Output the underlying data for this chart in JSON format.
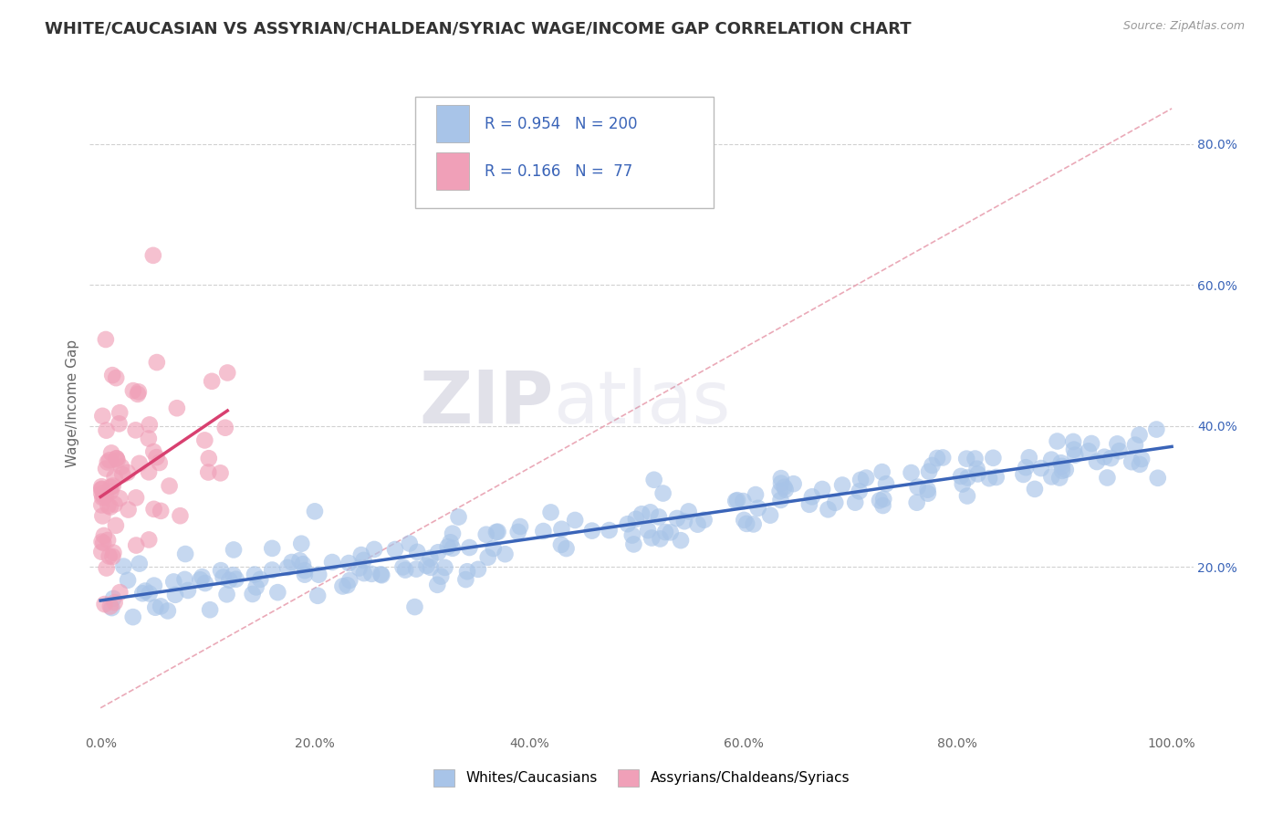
{
  "title": "WHITE/CAUCASIAN VS ASSYRIAN/CHALDEAN/SYRIAC WAGE/INCOME GAP CORRELATION CHART",
  "source_text": "Source: ZipAtlas.com",
  "ylabel": "Wage/Income Gap",
  "blue_R": 0.954,
  "blue_N": 200,
  "pink_R": 0.166,
  "pink_N": 77,
  "blue_color": "#A8C4E8",
  "blue_line_color": "#3A64B8",
  "pink_color": "#F0A0B8",
  "pink_line_color": "#D84070",
  "dashed_line_color": "#E8A0B0",
  "background_color": "#FFFFFF",
  "grid_color": "#CCCCCC",
  "legend_label_blue": "Whites/Caucasians",
  "legend_label_pink": "Assyrians/Chaldeans/Syriacs",
  "watermark_zip": "ZIP",
  "watermark_atlas": "atlas",
  "xlim": [
    0.0,
    1.0
  ],
  "ylim": [
    0.0,
    0.9
  ],
  "yticks": [
    0.2,
    0.4,
    0.6,
    0.8
  ],
  "yticklabels": [
    "20.0%",
    "40.0%",
    "60.0%",
    "80.0%"
  ],
  "xticks": [
    0.0,
    0.2,
    0.4,
    0.6,
    0.8,
    1.0
  ],
  "xticklabels": [
    "0.0%",
    "20.0%",
    "40.0%",
    "60.0%",
    "80.0%",
    "100.0%"
  ],
  "title_fontsize": 13,
  "axis_label_fontsize": 11,
  "tick_fontsize": 10,
  "legend_fontsize": 11,
  "right_ytick_color": "#3A64B8"
}
